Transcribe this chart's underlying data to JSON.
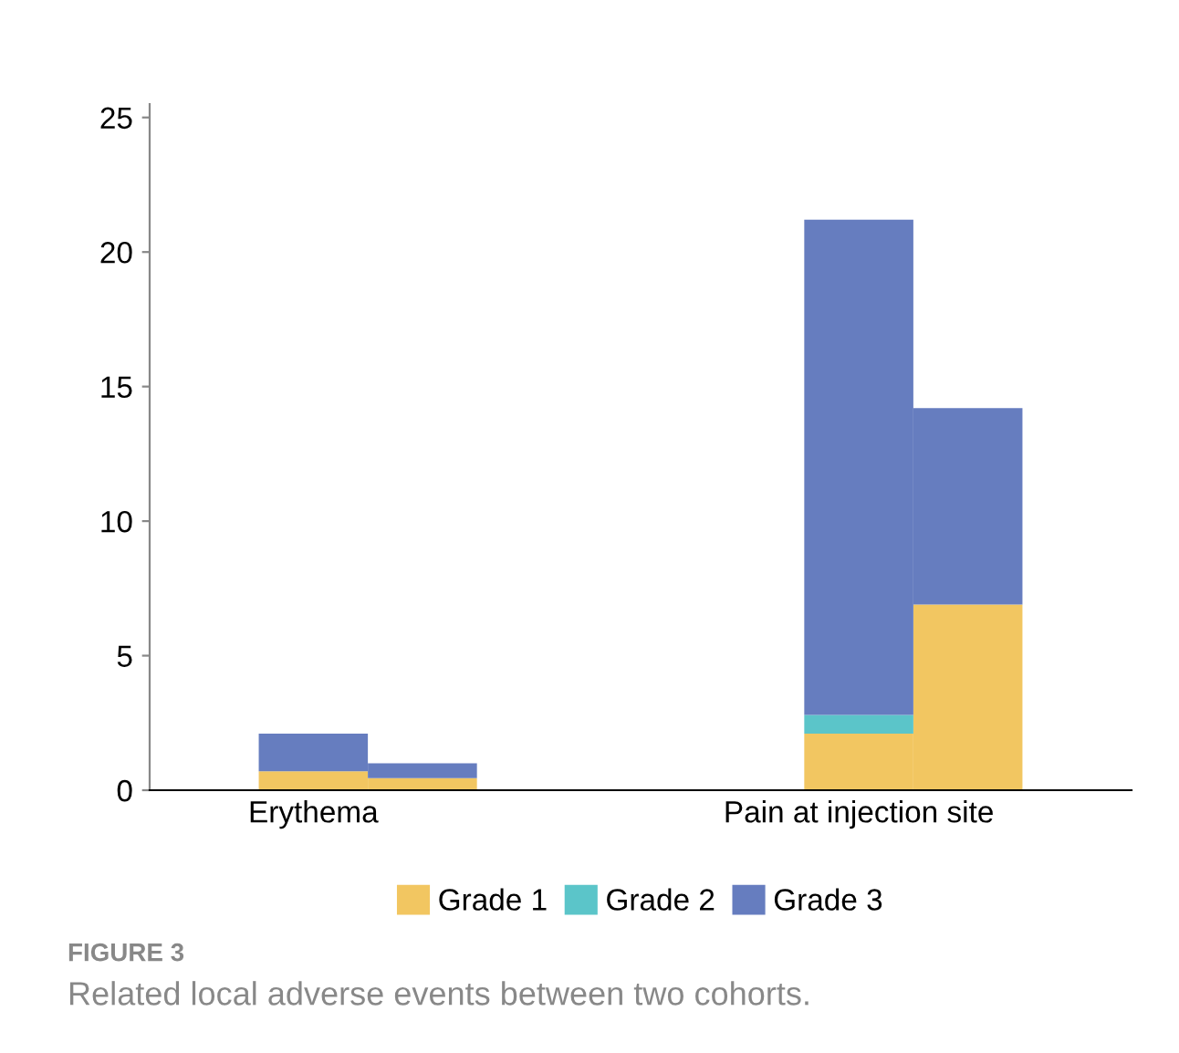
{
  "chart_data": {
    "type": "bar",
    "stacked": true,
    "title": "FIGURE 3",
    "subtitle": "Related local adverse events between two cohorts.",
    "categories": [
      null,
      "Erythema",
      null,
      null,
      null,
      null,
      "Pain at injection site",
      null,
      null
    ],
    "series": [
      {
        "name": "Grade 1",
        "color": "#f2c661",
        "values": [
          null,
          0.7,
          0.45,
          null,
          null,
          null,
          2.1,
          6.9,
          null
        ]
      },
      {
        "name": "Grade 2",
        "color": "#5bc5c9",
        "values": [
          null,
          0,
          0,
          null,
          null,
          null,
          0.7,
          0,
          null
        ]
      },
      {
        "name": "Grade 3",
        "color": "#667dbf",
        "values": [
          null,
          1.4,
          0.55,
          null,
          null,
          null,
          18.4,
          7.3,
          null
        ]
      }
    ],
    "ylim": [
      0,
      25.5
    ],
    "yticks": [
      0,
      5,
      10,
      15,
      20,
      25
    ],
    "grid": false,
    "legend": "bottom"
  }
}
